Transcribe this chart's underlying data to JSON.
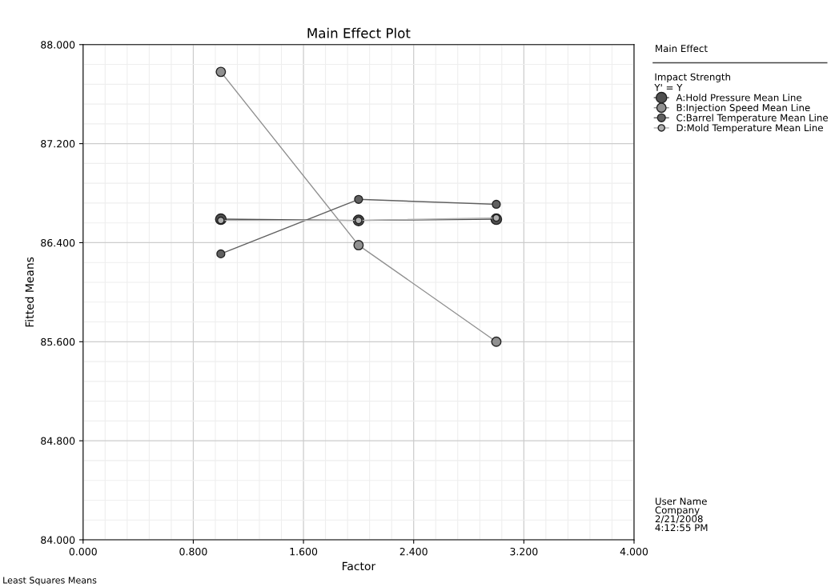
{
  "chart_data": {
    "type": "line",
    "title": "Main Effect Plot",
    "xlabel": "Factor",
    "ylabel": "Fitted Means",
    "x": [
      1,
      2,
      3
    ],
    "series": [
      {
        "name": "A:Hold Pressure Mean Line",
        "color": "#505050",
        "values": [
          86.59,
          86.58,
          86.59
        ]
      },
      {
        "name": "B:Injection Speed Mean Line",
        "color": "#909090",
        "values": [
          87.78,
          86.38,
          85.6
        ]
      },
      {
        "name": "C:Barrel Temperature Mean Line",
        "color": "#606060",
        "values": [
          86.31,
          86.75,
          86.71
        ]
      },
      {
        "name": "D:Mold Temperature Mean Line",
        "color": "#b0b0b0",
        "values": [
          86.58,
          86.58,
          86.6
        ]
      }
    ],
    "xlim": [
      0,
      4
    ],
    "xticks": [
      {
        "value": 0,
        "label": "0.000"
      },
      {
        "value": 0.8,
        "label": "0.800"
      },
      {
        "value": 1.6,
        "label": "1.600"
      },
      {
        "value": 2.4,
        "label": "2.400"
      },
      {
        "value": 3.2,
        "label": "3.200"
      },
      {
        "value": 4,
        "label": "4.000"
      }
    ],
    "ylim": [
      84,
      88
    ],
    "yticks": [
      {
        "value": 84,
        "label": "84.000"
      },
      {
        "value": 84.8,
        "label": "84.800"
      },
      {
        "value": 85.6,
        "label": "85.600"
      },
      {
        "value": 86.4,
        "label": "86.400"
      },
      {
        "value": 87.2,
        "label": "87.200"
      },
      {
        "value": 88,
        "label": "88.000"
      }
    ],
    "grid": true,
    "legend": "right",
    "marker": "circle",
    "line_style": "solid",
    "legend_title": "Impact Strength\nY' = Y",
    "annotations": [
      "Main Effect",
      "User Name\nCompany\n2/21/2008\n4:12:55 PM",
      "Least Squares Means"
    ]
  }
}
